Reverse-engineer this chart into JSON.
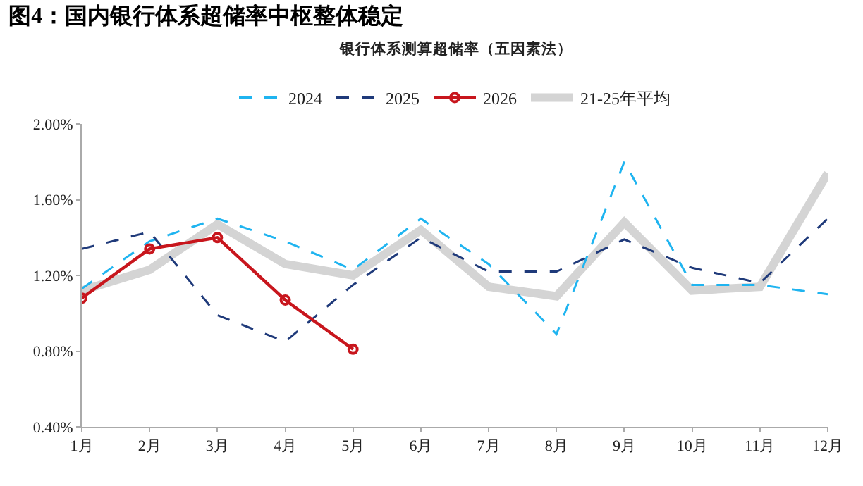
{
  "chart_data": {
    "type": "line",
    "title": "图4：国内银行体系超储率中枢整体稳定",
    "subtitle": "银行体系测算超储率（五因素法）",
    "categories": [
      "1月",
      "2月",
      "3月",
      "4月",
      "5月",
      "6月",
      "7月",
      "8月",
      "9月",
      "10月",
      "11月",
      "12月"
    ],
    "series": [
      {
        "name": "2024",
        "color": "#1fb4f0",
        "line_style": "dashed",
        "marker": "none",
        "values": [
          1.13,
          1.38,
          1.5,
          1.38,
          1.23,
          1.5,
          1.26,
          0.89,
          1.8,
          1.15,
          1.15,
          1.1
        ]
      },
      {
        "name": "2025",
        "color": "#1f3a7a",
        "line_style": "dashed",
        "marker": "none",
        "values": [
          1.34,
          1.43,
          0.99,
          0.85,
          1.15,
          1.4,
          1.22,
          1.22,
          1.39,
          1.24,
          1.16,
          1.5
        ]
      },
      {
        "name": "2026",
        "color": "#c8161d",
        "line_style": "solid",
        "marker": "circle",
        "values": [
          1.08,
          1.34,
          1.4,
          1.07,
          0.81,
          null,
          null,
          null,
          null,
          null,
          null,
          null
        ]
      },
      {
        "name": "21-25年平均",
        "color": "#d4d4d4",
        "line_style": "solid",
        "marker": "none",
        "values": [
          1.12,
          1.23,
          1.47,
          1.26,
          1.2,
          1.44,
          1.14,
          1.09,
          1.48,
          1.12,
          1.14,
          1.74
        ]
      }
    ],
    "ylim": [
      0.4,
      2.0
    ],
    "yticks": [
      {
        "value": 0.4,
        "label": "0.40%"
      },
      {
        "value": 0.8,
        "label": "0.80%"
      },
      {
        "value": 1.2,
        "label": "1.20%"
      },
      {
        "value": 1.6,
        "label": "1.60%"
      },
      {
        "value": 2.0,
        "label": "2.00%"
      }
    ],
    "grid": false,
    "legend": "top"
  }
}
